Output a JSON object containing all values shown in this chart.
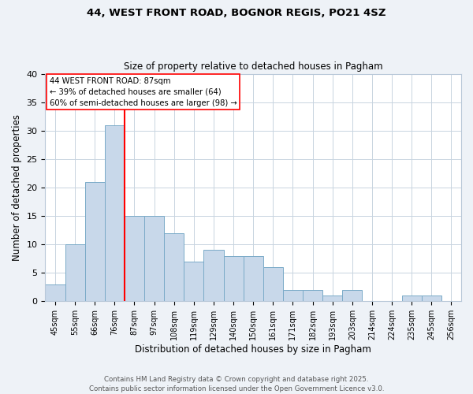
{
  "title1": "44, WEST FRONT ROAD, BOGNOR REGIS, PO21 4SZ",
  "title2": "Size of property relative to detached houses in Pagham",
  "xlabel": "Distribution of detached houses by size in Pagham",
  "ylabel": "Number of detached properties",
  "categories": [
    "45sqm",
    "55sqm",
    "66sqm",
    "76sqm",
    "87sqm",
    "97sqm",
    "108sqm",
    "119sqm",
    "129sqm",
    "140sqm",
    "150sqm",
    "161sqm",
    "171sqm",
    "182sqm",
    "193sqm",
    "203sqm",
    "214sqm",
    "224sqm",
    "235sqm",
    "245sqm",
    "256sqm"
  ],
  "values": [
    3,
    10,
    21,
    31,
    15,
    15,
    12,
    7,
    9,
    8,
    8,
    6,
    2,
    2,
    1,
    2,
    0,
    0,
    1,
    1,
    0
  ],
  "bar_color": "#c8d8ea",
  "bar_edge_color": "#7aaac8",
  "redline_index": 4,
  "annotation_title": "44 WEST FRONT ROAD: 87sqm",
  "annotation_line1": "← 39% of detached houses are smaller (64)",
  "annotation_line2": "60% of semi-detached houses are larger (98) →",
  "ylim": [
    0,
    40
  ],
  "yticks": [
    0,
    5,
    10,
    15,
    20,
    25,
    30,
    35,
    40
  ],
  "footnote1": "Contains HM Land Registry data © Crown copyright and database right 2025.",
  "footnote2": "Contains public sector information licensed under the Open Government Licence v3.0.",
  "background_color": "#eef2f7",
  "plot_background": "#ffffff",
  "grid_color": "#c8d4e0"
}
